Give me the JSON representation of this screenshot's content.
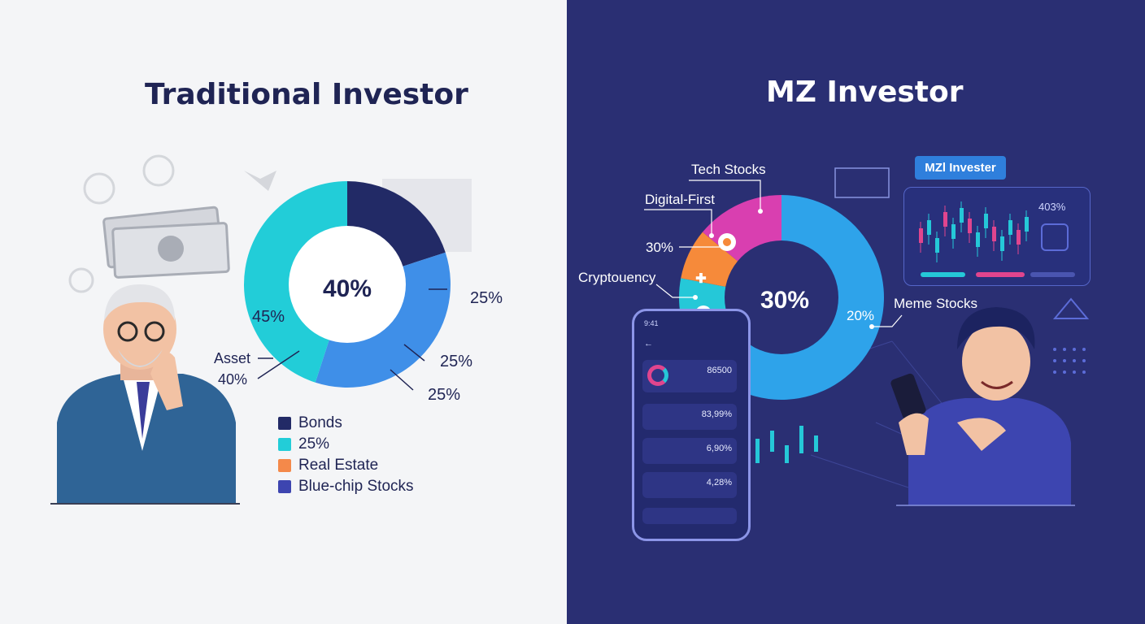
{
  "left": {
    "title": "Traditional Investor",
    "chart_data": {
      "type": "pie",
      "center_label": "40%",
      "slices": [
        {
          "name": "Bonds",
          "value": 20,
          "color": "#222a66"
        },
        {
          "name": "Blue-chip Stocks",
          "value": 35,
          "color": "#3f8fe8"
        },
        {
          "name": "25%",
          "value": 45,
          "color": "#22cdd8"
        }
      ],
      "labels": {
        "slice_left": "45%",
        "right_top": "25%",
        "right_mid": "25%",
        "right_bottom": "25%",
        "asset": "Asset",
        "asset_value": "40%"
      },
      "legend": [
        {
          "label": "Bonds",
          "color": "#222a66"
        },
        {
          "label": "25%",
          "color": "#22cdd8"
        },
        {
          "label": "Real Estate",
          "color": "#f4894a"
        },
        {
          "label": "Blue-chip Stocks",
          "color": "#3d45b0"
        }
      ]
    }
  },
  "right": {
    "title": "MZ Investor",
    "chart_data": {
      "type": "pie",
      "center_label": "30%",
      "slices": [
        {
          "name": "Meme Stocks",
          "value": 63,
          "color": "#2ea3ea"
        },
        {
          "name": "Cryptouency",
          "value": 15,
          "color": "#25c8d8"
        },
        {
          "name": "Digital-First",
          "value": 8,
          "color": "#f68a3a"
        },
        {
          "name": "Tech Stocks",
          "value": 14,
          "color": "#d93fb0"
        }
      ],
      "labels": {
        "tech": "Tech Stocks",
        "digital": "Digital-First",
        "pct30": "30%",
        "crypto": "Cryptouency",
        "meme": "Meme Stocks",
        "pct20": "20%"
      }
    },
    "dashboard": {
      "tag": "MZl Invester",
      "value": "403%"
    },
    "phone": {
      "time": "9:41",
      "cards": [
        "86500",
        "83,99%",
        "6,90%",
        "4,28%"
      ]
    },
    "icons": [
      "plus-icon",
      "dollar-icon",
      "target-icon"
    ]
  }
}
